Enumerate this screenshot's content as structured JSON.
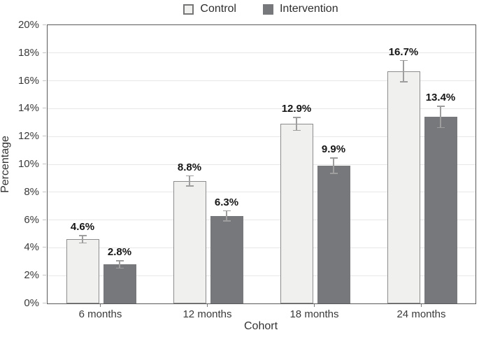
{
  "chart_data": {
    "type": "bar",
    "title": "",
    "categories": [
      "6 months",
      "12 months",
      "18 months",
      "24 months"
    ],
    "series": [
      {
        "name": "Control",
        "values": [
          4.6,
          8.8,
          12.9,
          16.7
        ],
        "errors": [
          0.3,
          0.4,
          0.5,
          0.8
        ],
        "data_labels": [
          "4.6%",
          "8.8%",
          "12.9%",
          "16.7%"
        ]
      },
      {
        "name": "Intervention",
        "values": [
          2.8,
          6.3,
          9.9,
          13.4
        ],
        "errors": [
          0.3,
          0.4,
          0.6,
          0.8
        ],
        "data_labels": [
          "2.8%",
          "6.3%",
          "9.9%",
          "13.4%"
        ]
      }
    ],
    "xlabel": "Cohort",
    "ylabel": "Percentage",
    "ylim": [
      0,
      20
    ],
    "ytick_step": 2,
    "ytick_labels": [
      "0%",
      "2%",
      "4%",
      "6%",
      "8%",
      "10%",
      "12%",
      "14%",
      "16%",
      "18%",
      "20%"
    ],
    "grid": "horizontal",
    "legend_position": "top-center",
    "error_bars": true
  },
  "colors": {
    "control_fill": "#f0f0ef",
    "control_border": "#8c8c8c",
    "intervention_fill": "#77787b",
    "error_bar": "#9e9e9e",
    "plot_border": "#595959",
    "gridline": "#e7e7e7",
    "text": "#3a3a3a",
    "value_label_text": "#161616"
  }
}
